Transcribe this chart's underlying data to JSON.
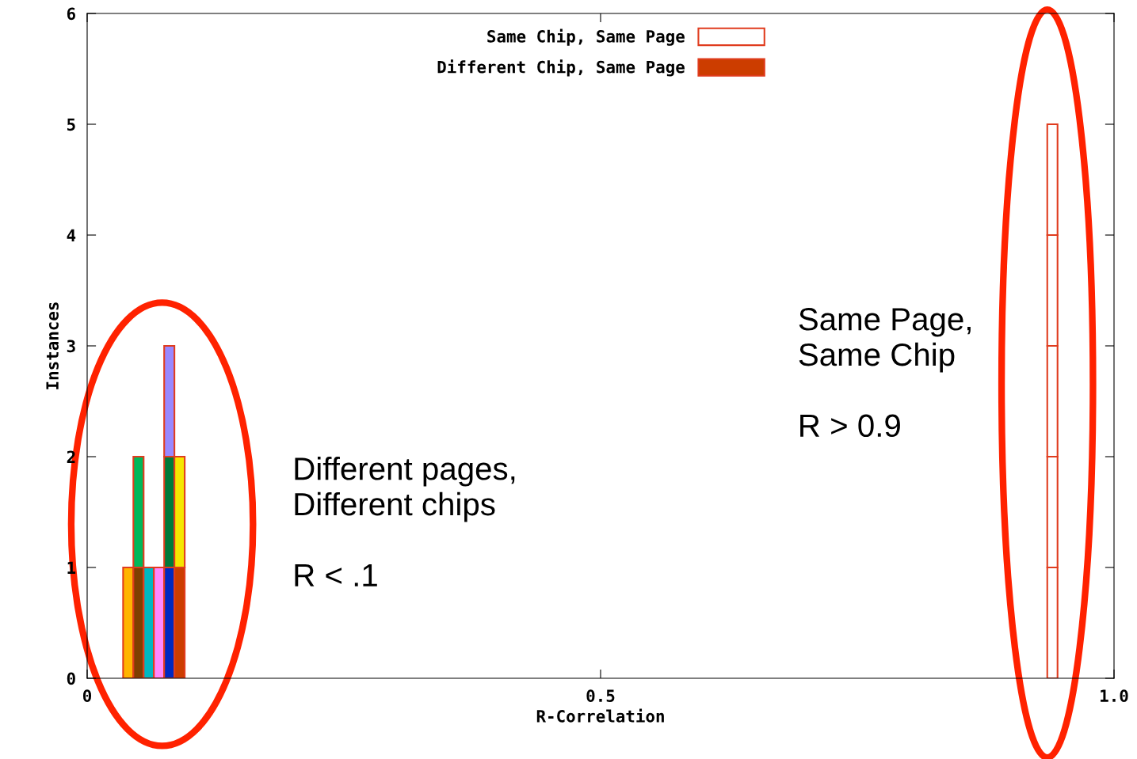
{
  "chart_data": {
    "type": "bar",
    "stacked": true,
    "xlabel": "R-Correlation",
    "ylabel": "Instances",
    "xlim": [
      0,
      1
    ],
    "xticks": [
      0,
      0.5,
      {
        "value": 1,
        "label": "1.0"
      }
    ],
    "ylim": [
      0,
      6
    ],
    "yticks": [
      0,
      1,
      2,
      3,
      4,
      5,
      6
    ],
    "grid": false,
    "legend": "top",
    "x": [
      0.04,
      0.05,
      0.06,
      0.07,
      0.08,
      0.09,
      0.94
    ],
    "series": [
      {
        "name": "Same Chip, Same Page",
        "color": "#ffffff",
        "values": [
          null,
          null,
          null,
          null,
          null,
          null,
          1
        ]
      },
      {
        "name": "Different Chip, Same Page",
        "color": "#cc3d00",
        "values": [
          1,
          1,
          1,
          1,
          1,
          1,
          null
        ],
        "colors": [
          "#ffb400",
          "#7f3f00",
          "#00b8c0",
          "#ff88ff",
          "#0028c0",
          "#cc3d00",
          null
        ]
      },
      {
        "values": [
          null,
          1,
          null,
          null,
          1,
          1,
          1
        ],
        "colors": [
          null,
          "#00b85a",
          null,
          null,
          "#007a3a",
          "#f5e600",
          "#ffffff"
        ]
      },
      {
        "values": [
          null,
          null,
          null,
          null,
          1,
          null,
          1
        ],
        "colors": [
          null,
          null,
          null,
          null,
          "#9988ff",
          null,
          "#ffffff"
        ]
      },
      {
        "color": "#ffffff",
        "values": [
          null,
          null,
          null,
          null,
          null,
          null,
          1
        ]
      },
      {
        "color": "#ffffff",
        "values": [
          null,
          null,
          null,
          null,
          null,
          null,
          1
        ]
      }
    ],
    "annotations": [
      "Different pages,\nDifferent chips\n\nR < .1",
      "Same Page,\nSame Chip\n\nR > 0.9"
    ]
  }
}
